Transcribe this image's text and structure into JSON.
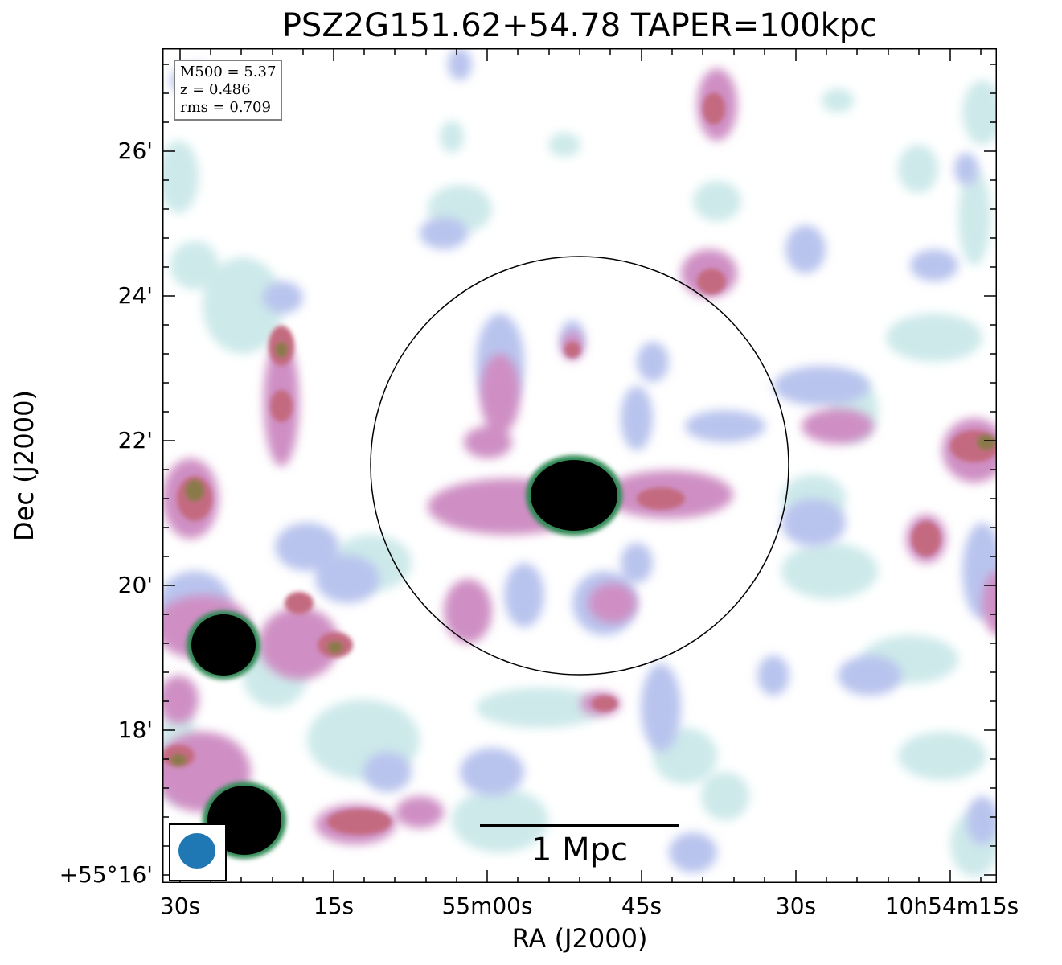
{
  "figure": {
    "title": "PSZ2G151.62+54.78 TAPER=100kpc",
    "xlabel": "RA (J2000)",
    "ylabel": "Dec (J2000)",
    "info": {
      "m500": "M500 = 5.37",
      "z": "z = 0.486",
      "rms": "rms = 0.709"
    },
    "scalebar_label": "1 Mpc",
    "y_ticks": [
      "26'",
      "24'",
      "22'",
      "20'",
      "18'",
      "+55°16'"
    ],
    "x_ticks": [
      "30s",
      "15s",
      "55m00s",
      "45s",
      "30s",
      "10h54m15s"
    ],
    "colors": {
      "faint": "#cde9ea",
      "lavender": "#b9c4ee",
      "pink": "#cf8fc4",
      "red": "#c46a80",
      "olive": "#8a7a4a",
      "core": "#000000",
      "rim": "#2e8a55",
      "beam": "#1f77b4"
    }
  }
}
